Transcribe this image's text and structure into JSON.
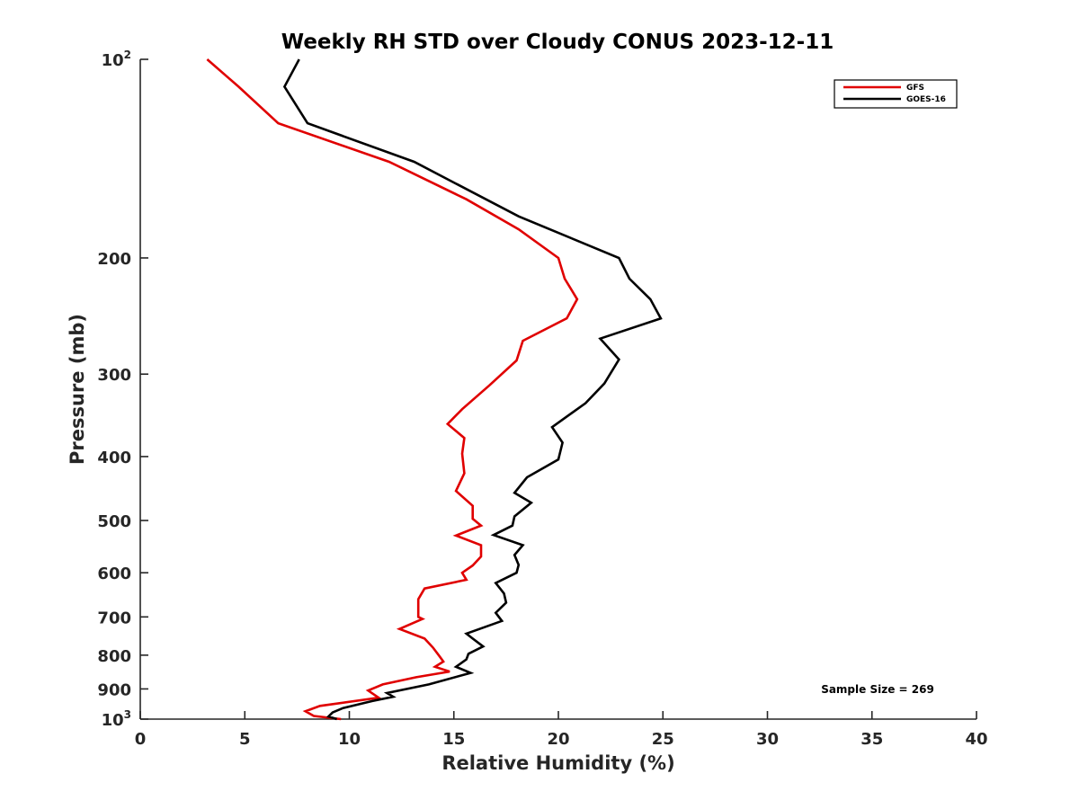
{
  "chart_data": {
    "type": "line",
    "title": "Weekly RH STD over Cloudy CONUS 2023-12-11",
    "xlabel": "Relative Humidity (%)",
    "ylabel": "Pressure (mb)",
    "xlim": [
      0,
      40
    ],
    "ylim": [
      100,
      1000
    ],
    "y_scale": "log",
    "y_reversed": true,
    "x_ticks": [
      "0",
      "5",
      "10",
      "15",
      "20",
      "25",
      "30",
      "35",
      "40"
    ],
    "y_ticks": [
      {
        "value": 100,
        "base": "10",
        "exp": "2"
      },
      {
        "value": 200,
        "label": "200"
      },
      {
        "value": 300,
        "label": "300"
      },
      {
        "value": 400,
        "label": "400"
      },
      {
        "value": 500,
        "label": "500"
      },
      {
        "value": 600,
        "label": "600"
      },
      {
        "value": 700,
        "label": "700"
      },
      {
        "value": 800,
        "label": "800"
      },
      {
        "value": 900,
        "label": "900"
      },
      {
        "value": 1000,
        "base": "10",
        "exp": "3"
      }
    ],
    "grid": false,
    "legend_position": "top-right",
    "annotation": "Sample Size = 269",
    "series": [
      {
        "name": "GFS",
        "color": "#e00000",
        "x": [
          3.2,
          4.7,
          6.6,
          11.9,
          15.6,
          18.1,
          20.0,
          20.3,
          20.9,
          20.4,
          18.3,
          18.0,
          16.7,
          15.4,
          14.7,
          15.5,
          15.4,
          15.5,
          15.1,
          15.9,
          15.9,
          16.3,
          15.1,
          16.3,
          16.3,
          15.9,
          15.4,
          15.6,
          13.6,
          13.3,
          13.3,
          13.3,
          13.5,
          12.4,
          13.6,
          14.0,
          14.3,
          14.5,
          14.1,
          14.8,
          13.2,
          11.6,
          10.9,
          11.4,
          8.6,
          7.9,
          8.3,
          9.6
        ],
        "y": [
          100,
          110,
          125,
          143,
          163,
          181,
          200,
          215,
          231,
          247,
          267,
          286,
          312,
          339,
          357,
          375,
          396,
          424,
          451,
          475,
          497,
          509,
          527,
          545,
          567,
          585,
          600,
          615,
          634,
          658,
          680,
          700,
          705,
          730,
          755,
          779,
          802,
          818,
          833,
          847,
          864,
          886,
          905,
          928,
          955,
          973,
          989,
          1000
        ]
      },
      {
        "name": "GOES-16",
        "color": "#000000",
        "x": [
          7.6,
          6.9,
          8.0,
          13.1,
          18.1,
          22.9,
          23.4,
          24.4,
          24.9,
          22.0,
          22.9,
          22.2,
          21.3,
          19.7,
          20.2,
          20.0,
          18.5,
          17.9,
          18.7,
          17.9,
          17.8,
          16.9,
          18.3,
          17.9,
          18.1,
          18.0,
          17.0,
          17.4,
          17.5,
          17.0,
          17.3,
          15.6,
          15.9,
          16.4,
          15.7,
          15.6,
          15.1,
          15.8,
          13.8,
          11.8,
          12.1,
          11.1,
          9.7,
          9.2,
          9.0,
          9.4
        ],
        "y": [
          100,
          110,
          125,
          143,
          173,
          200,
          215,
          231,
          247,
          265,
          285,
          310,
          332,
          361,
          381,
          404,
          430,
          454,
          470,
          493,
          509,
          526,
          545,
          564,
          584,
          600,
          622,
          645,
          666,
          690,
          710,
          742,
          755,
          776,
          796,
          812,
          833,
          851,
          886,
          913,
          925,
          939,
          962,
          977,
          991,
          1000
        ]
      }
    ]
  }
}
